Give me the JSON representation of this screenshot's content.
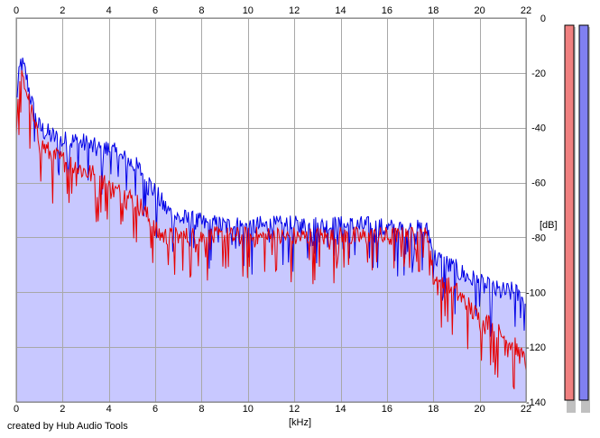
{
  "chart_data": {
    "type": "area",
    "xlabel": "[kHz]",
    "ylabel": "[dB]",
    "xlim": [
      0,
      22
    ],
    "ylim": [
      -140,
      0
    ],
    "x_ticks": [
      "0",
      "2",
      "4",
      "6",
      "8",
      "10",
      "12",
      "14",
      "16",
      "18",
      "20",
      "22"
    ],
    "y_ticks": [
      "0",
      "-20",
      "-40",
      "-60",
      "-80",
      "-100",
      "-120",
      "-140"
    ],
    "grid": true,
    "series": [
      {
        "color": "#0000e6",
        "x": [
          0,
          0.2,
          0.4,
          0.6,
          0.8,
          1,
          1.5,
          2,
          2.5,
          3,
          3.5,
          4,
          4.5,
          5,
          5.5,
          6,
          6.5,
          7,
          8,
          9,
          10,
          11,
          12,
          13,
          14,
          15,
          16,
          17,
          17.8,
          18,
          19,
          20,
          20.5,
          21,
          21.5,
          22
        ],
        "values": [
          -30,
          -16,
          -20,
          -28,
          -36,
          -40,
          -43,
          -45,
          -45,
          -46,
          -48,
          -48,
          -51,
          -53,
          -57,
          -64,
          -70,
          -73,
          -75,
          -76,
          -76,
          -76,
          -76,
          -76,
          -76,
          -76,
          -77,
          -77,
          -78,
          -87,
          -92,
          -97,
          -99,
          -100,
          -100,
          -104
        ]
      },
      {
        "color": "#e60000",
        "x": [
          0,
          0.2,
          0.4,
          0.6,
          0.8,
          1,
          1.5,
          2,
          2.5,
          3,
          3.5,
          4,
          4.5,
          5,
          5.5,
          6,
          6.5,
          7,
          8,
          9,
          10,
          11,
          12,
          13,
          14,
          15,
          16,
          17,
          17.8,
          18,
          19,
          20,
          20.5,
          21,
          21.5,
          22
        ],
        "values": [
          -40,
          -22,
          -25,
          -32,
          -40,
          -45,
          -50,
          -52,
          -54,
          -56,
          -58,
          -62,
          -64,
          -66,
          -70,
          -78,
          -80,
          -80,
          -80,
          -80,
          -80,
          -80,
          -80,
          -80,
          -80,
          -80,
          -80,
          -80,
          -80,
          -95,
          -100,
          -110,
          -112,
          -116,
          -120,
          -126
        ]
      }
    ],
    "meters": [
      {
        "color": "#f08080"
      },
      {
        "color": "#8080f0"
      }
    ],
    "fill_color": "#c8c8ff"
  },
  "footer": {
    "credit": "created by Hub Audio Tools"
  }
}
